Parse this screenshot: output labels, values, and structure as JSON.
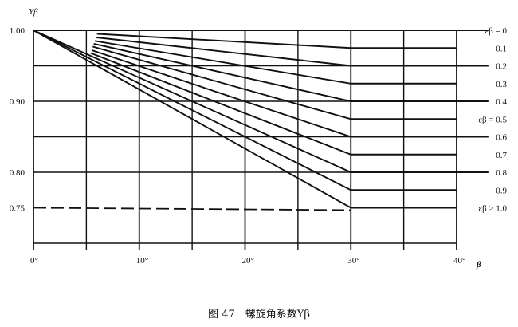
{
  "chart_data": {
    "type": "line",
    "title": "",
    "xlabel": "β",
    "ylabel": "Yβ",
    "xlim": [
      0,
      40
    ],
    "ylim": [
      0.7,
      1.0
    ],
    "x_ticks": [
      0,
      10,
      20,
      30,
      40
    ],
    "x_tick_labels": [
      "0°",
      "10°",
      "20°",
      "30°",
      "40°"
    ],
    "y_ticks": [
      1.0,
      0.9,
      0.8,
      0.75
    ],
    "y_tick_labels": [
      "1.00",
      "0.90",
      "0.80",
      "0.75"
    ],
    "grid": {
      "x_step": 5,
      "y_step": 0.05,
      "on": true
    },
    "line_color": "#111111",
    "series": [
      {
        "name": "εβ = 0",
        "points": [
          [
            0,
            1.0
          ],
          [
            40,
            1.0
          ]
        ]
      },
      {
        "name": "0.1",
        "points": [
          [
            6.0,
            0.995
          ],
          [
            30,
            0.975
          ],
          [
            40,
            0.975
          ]
        ]
      },
      {
        "name": "0.2",
        "points": [
          [
            5.9,
            0.99
          ],
          [
            30,
            0.95
          ],
          [
            40,
            0.95
          ]
        ]
      },
      {
        "name": "0.3",
        "points": [
          [
            5.8,
            0.985
          ],
          [
            30,
            0.925
          ],
          [
            40,
            0.925
          ]
        ]
      },
      {
        "name": "0.4",
        "points": [
          [
            5.7,
            0.981
          ],
          [
            30,
            0.9
          ],
          [
            40,
            0.9
          ]
        ]
      },
      {
        "name": "εβ = 0.5",
        "points": [
          [
            5.6,
            0.977
          ],
          [
            30,
            0.875
          ],
          [
            40,
            0.875
          ]
        ]
      },
      {
        "name": "0.6",
        "points": [
          [
            5.5,
            0.972
          ],
          [
            30,
            0.85
          ],
          [
            40,
            0.85
          ]
        ]
      },
      {
        "name": "0.7",
        "points": [
          [
            5.4,
            0.968
          ],
          [
            30,
            0.825
          ],
          [
            40,
            0.825
          ]
        ]
      },
      {
        "name": "0.8",
        "points": [
          [
            0,
            1.0
          ],
          [
            30,
            0.8
          ],
          [
            40,
            0.8
          ]
        ]
      },
      {
        "name": "0.9",
        "points": [
          [
            0,
            1.0
          ],
          [
            30,
            0.775
          ],
          [
            40,
            0.775
          ]
        ]
      },
      {
        "name": "εβ ≥ 1.0",
        "points": [
          [
            0,
            1.0
          ],
          [
            30,
            0.75
          ],
          [
            40,
            0.75
          ]
        ]
      }
    ],
    "reference_line": {
      "style": "dashed",
      "y": 0.75,
      "x": [
        0,
        30
      ]
    },
    "caption": "图 47　螺旋角系数Yβ"
  }
}
